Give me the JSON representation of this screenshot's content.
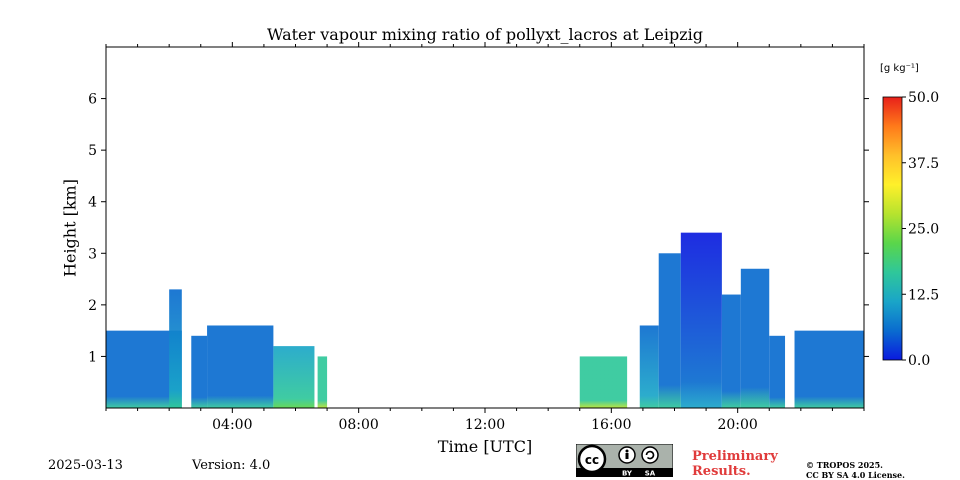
{
  "chart_data": {
    "type": "heatmap",
    "title": "Water vapour mixing ratio of pollyxt_lacros at Leipzig",
    "xlabel": "Time [UTC]",
    "ylabel": "Height [km]",
    "x_unit": "hours UTC",
    "xlim": [
      0,
      24
    ],
    "ylim": [
      0,
      7
    ],
    "x_ticks": [
      {
        "value": 4,
        "label": "04:00"
      },
      {
        "value": 8,
        "label": "08:00"
      },
      {
        "value": 12,
        "label": "12:00"
      },
      {
        "value": 16,
        "label": "16:00"
      },
      {
        "value": 20,
        "label": "20:00"
      }
    ],
    "y_ticks": [
      {
        "value": 1,
        "label": "1"
      },
      {
        "value": 2,
        "label": "2"
      },
      {
        "value": 3,
        "label": "3"
      },
      {
        "value": 4,
        "label": "4"
      },
      {
        "value": 5,
        "label": "5"
      },
      {
        "value": 6,
        "label": "6"
      }
    ],
    "colorbar": {
      "label": "[g kg⁻¹]",
      "min": 0.0,
      "max": 50.0,
      "ticks": [
        "0.0",
        "12.5",
        "25.0",
        "37.5",
        "50.0"
      ],
      "colormap": [
        "#0a1adf",
        "#0a6ccf",
        "#1aa5c8",
        "#2fc79a",
        "#5ad64a",
        "#b6e32e",
        "#fff02a",
        "#ffc02a",
        "#ff7a1a",
        "#e8201a"
      ]
    },
    "data_extent": [
      {
        "t_start": 0.0,
        "t_end": 2.4,
        "top_km": 1.5,
        "value": 5
      },
      {
        "t_start": 2.0,
        "t_end": 2.4,
        "top_km": 2.3,
        "value": 8
      },
      {
        "t_start": 2.7,
        "t_end": 3.2,
        "top_km": 1.4,
        "value": 6
      },
      {
        "t_start": 3.2,
        "t_end": 5.3,
        "top_km": 1.6,
        "value": 6
      },
      {
        "t_start": 5.3,
        "t_end": 6.6,
        "top_km": 1.2,
        "value": 14
      },
      {
        "t_start": 6.7,
        "t_end": 7.0,
        "top_km": 1.0,
        "value": 15
      },
      {
        "t_start": 15.0,
        "t_end": 16.5,
        "top_km": 1.0,
        "value": 16
      },
      {
        "t_start": 16.9,
        "t_end": 17.5,
        "top_km": 1.6,
        "value": 8
      },
      {
        "t_start": 17.5,
        "t_end": 18.2,
        "top_km": 3.0,
        "value": 5
      },
      {
        "t_start": 18.2,
        "t_end": 19.5,
        "top_km": 3.4,
        "value": 4
      },
      {
        "t_start": 19.5,
        "t_end": 20.1,
        "top_km": 2.2,
        "value": 5
      },
      {
        "t_start": 20.1,
        "t_end": 21.0,
        "top_km": 2.7,
        "value": 5
      },
      {
        "t_start": 21.0,
        "t_end": 21.5,
        "top_km": 1.4,
        "value": 5
      },
      {
        "t_start": 21.8,
        "t_end": 24.0,
        "top_km": 1.5,
        "value": 5
      }
    ]
  },
  "footer": {
    "date": "2025-03-13",
    "version": "Version: 4.0",
    "preliminary_line1": "Preliminary",
    "preliminary_line2": "Results.",
    "copyright_line1": "© TROPOS 2025.",
    "copyright_line2": "CC BY SA 4.0 License.",
    "license_badge": {
      "by": "BY",
      "sa": "SA",
      "icon": "creative-commons-icon"
    }
  }
}
